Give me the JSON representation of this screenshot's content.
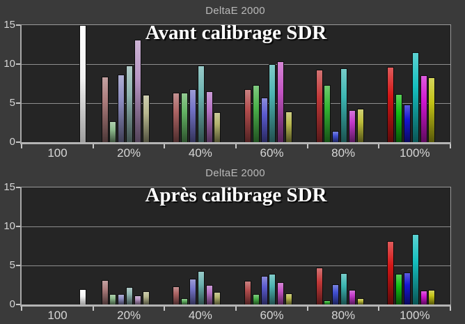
{
  "colors": {
    "background": "#3a3a3a",
    "plot_background": "#252525",
    "grid": "#8f8f8f",
    "axis": "#b4b4b4",
    "tick": "#c6c6c6",
    "label": "#d6d6d6",
    "axis_title": "#b9b9b9",
    "main_title": "#ffffff",
    "bar_border": "#0c0c0c",
    "white_bar": "#f2f2f2",
    "series_by_level": {
      "20%": {
        "red": "#aa7a7a",
        "green": "#8cba8c",
        "blue": "#8c8cc0",
        "cyan": "#8eb3af",
        "magenta": "#b795c3",
        "yellow": "#b7b78e"
      },
      "40%": {
        "red": "#ab6363",
        "green": "#63b363",
        "blue": "#7272c6",
        "cyan": "#6cb3b0",
        "magenta": "#b470c4",
        "yellow": "#b3b36e"
      },
      "60%": {
        "red": "#b34d4d",
        "green": "#4bb34b",
        "blue": "#5a5acd",
        "cyan": "#4db5b2",
        "magenta": "#c353c3",
        "yellow": "#b9b94f"
      },
      "80%": {
        "red": "#c23838",
        "green": "#33b533",
        "blue": "#4150d2",
        "cyan": "#3cb6b2",
        "magenta": "#c238ca",
        "yellow": "#bdbd3a"
      },
      "100%": {
        "red": "#d31616",
        "green": "#12bd12",
        "blue": "#1616d3",
        "cyan": "#16bfbf",
        "magenta": "#cf16cf",
        "yellow": "#c3c316"
      }
    }
  },
  "chart_data": [
    {
      "type": "bar",
      "axis_label": "DeltaE 2000",
      "title": "Avant calibrage SDR",
      "xlabel": "",
      "ylabel": "",
      "ylim": [
        0,
        15
      ],
      "yticks": [
        "0",
        "5",
        "10",
        "15"
      ],
      "grid": true,
      "legend": "none",
      "categories": [
        "100",
        "20%",
        "40%",
        "60%",
        "80%",
        "100%"
      ],
      "clip_note": "white bar reaches chart top (value >= 15)",
      "series": [
        {
          "name": "white",
          "values": [
            15,
            null,
            null,
            null,
            null,
            null
          ]
        },
        {
          "name": "red",
          "values": [
            null,
            8.4,
            6.3,
            6.8,
            9.3,
            9.6
          ]
        },
        {
          "name": "green",
          "values": [
            null,
            2.7,
            6.3,
            7.3,
            7.3,
            6.2
          ]
        },
        {
          "name": "blue",
          "values": [
            null,
            8.7,
            6.8,
            5.7,
            1.4,
            4.8
          ]
        },
        {
          "name": "cyan",
          "values": [
            null,
            9.8,
            9.8,
            10.0,
            9.5,
            11.5
          ]
        },
        {
          "name": "magenta",
          "values": [
            null,
            13.1,
            6.5,
            10.4,
            4.1,
            8.6
          ]
        },
        {
          "name": "yellow",
          "values": [
            null,
            6.1,
            3.8,
            3.9,
            4.3,
            8.3
          ]
        }
      ]
    },
    {
      "type": "bar",
      "axis_label": "DeltaE 2000",
      "title": "Après calibrage SDR",
      "xlabel": "",
      "ylabel": "",
      "ylim": [
        0,
        15
      ],
      "yticks": [
        "0",
        "5",
        "10",
        "15"
      ],
      "grid": true,
      "legend": "none",
      "categories": [
        "100",
        "20%",
        "40%",
        "60%",
        "80%",
        "100%"
      ],
      "series": [
        {
          "name": "white",
          "values": [
            2.0,
            null,
            null,
            null,
            null,
            null
          ]
        },
        {
          "name": "red",
          "values": [
            null,
            3.1,
            2.3,
            3.0,
            4.7,
            8.1
          ]
        },
        {
          "name": "green",
          "values": [
            null,
            1.3,
            0.8,
            1.3,
            0.5,
            3.9
          ]
        },
        {
          "name": "blue",
          "values": [
            null,
            1.3,
            3.3,
            3.7,
            2.6,
            4.1
          ]
        },
        {
          "name": "cyan",
          "values": [
            null,
            2.2,
            4.3,
            3.9,
            4.0,
            9.0
          ]
        },
        {
          "name": "magenta",
          "values": [
            null,
            1.2,
            2.5,
            2.9,
            1.9,
            1.8
          ]
        },
        {
          "name": "yellow",
          "values": [
            null,
            1.7,
            1.6,
            1.4,
            0.8,
            1.9
          ]
        }
      ]
    }
  ]
}
